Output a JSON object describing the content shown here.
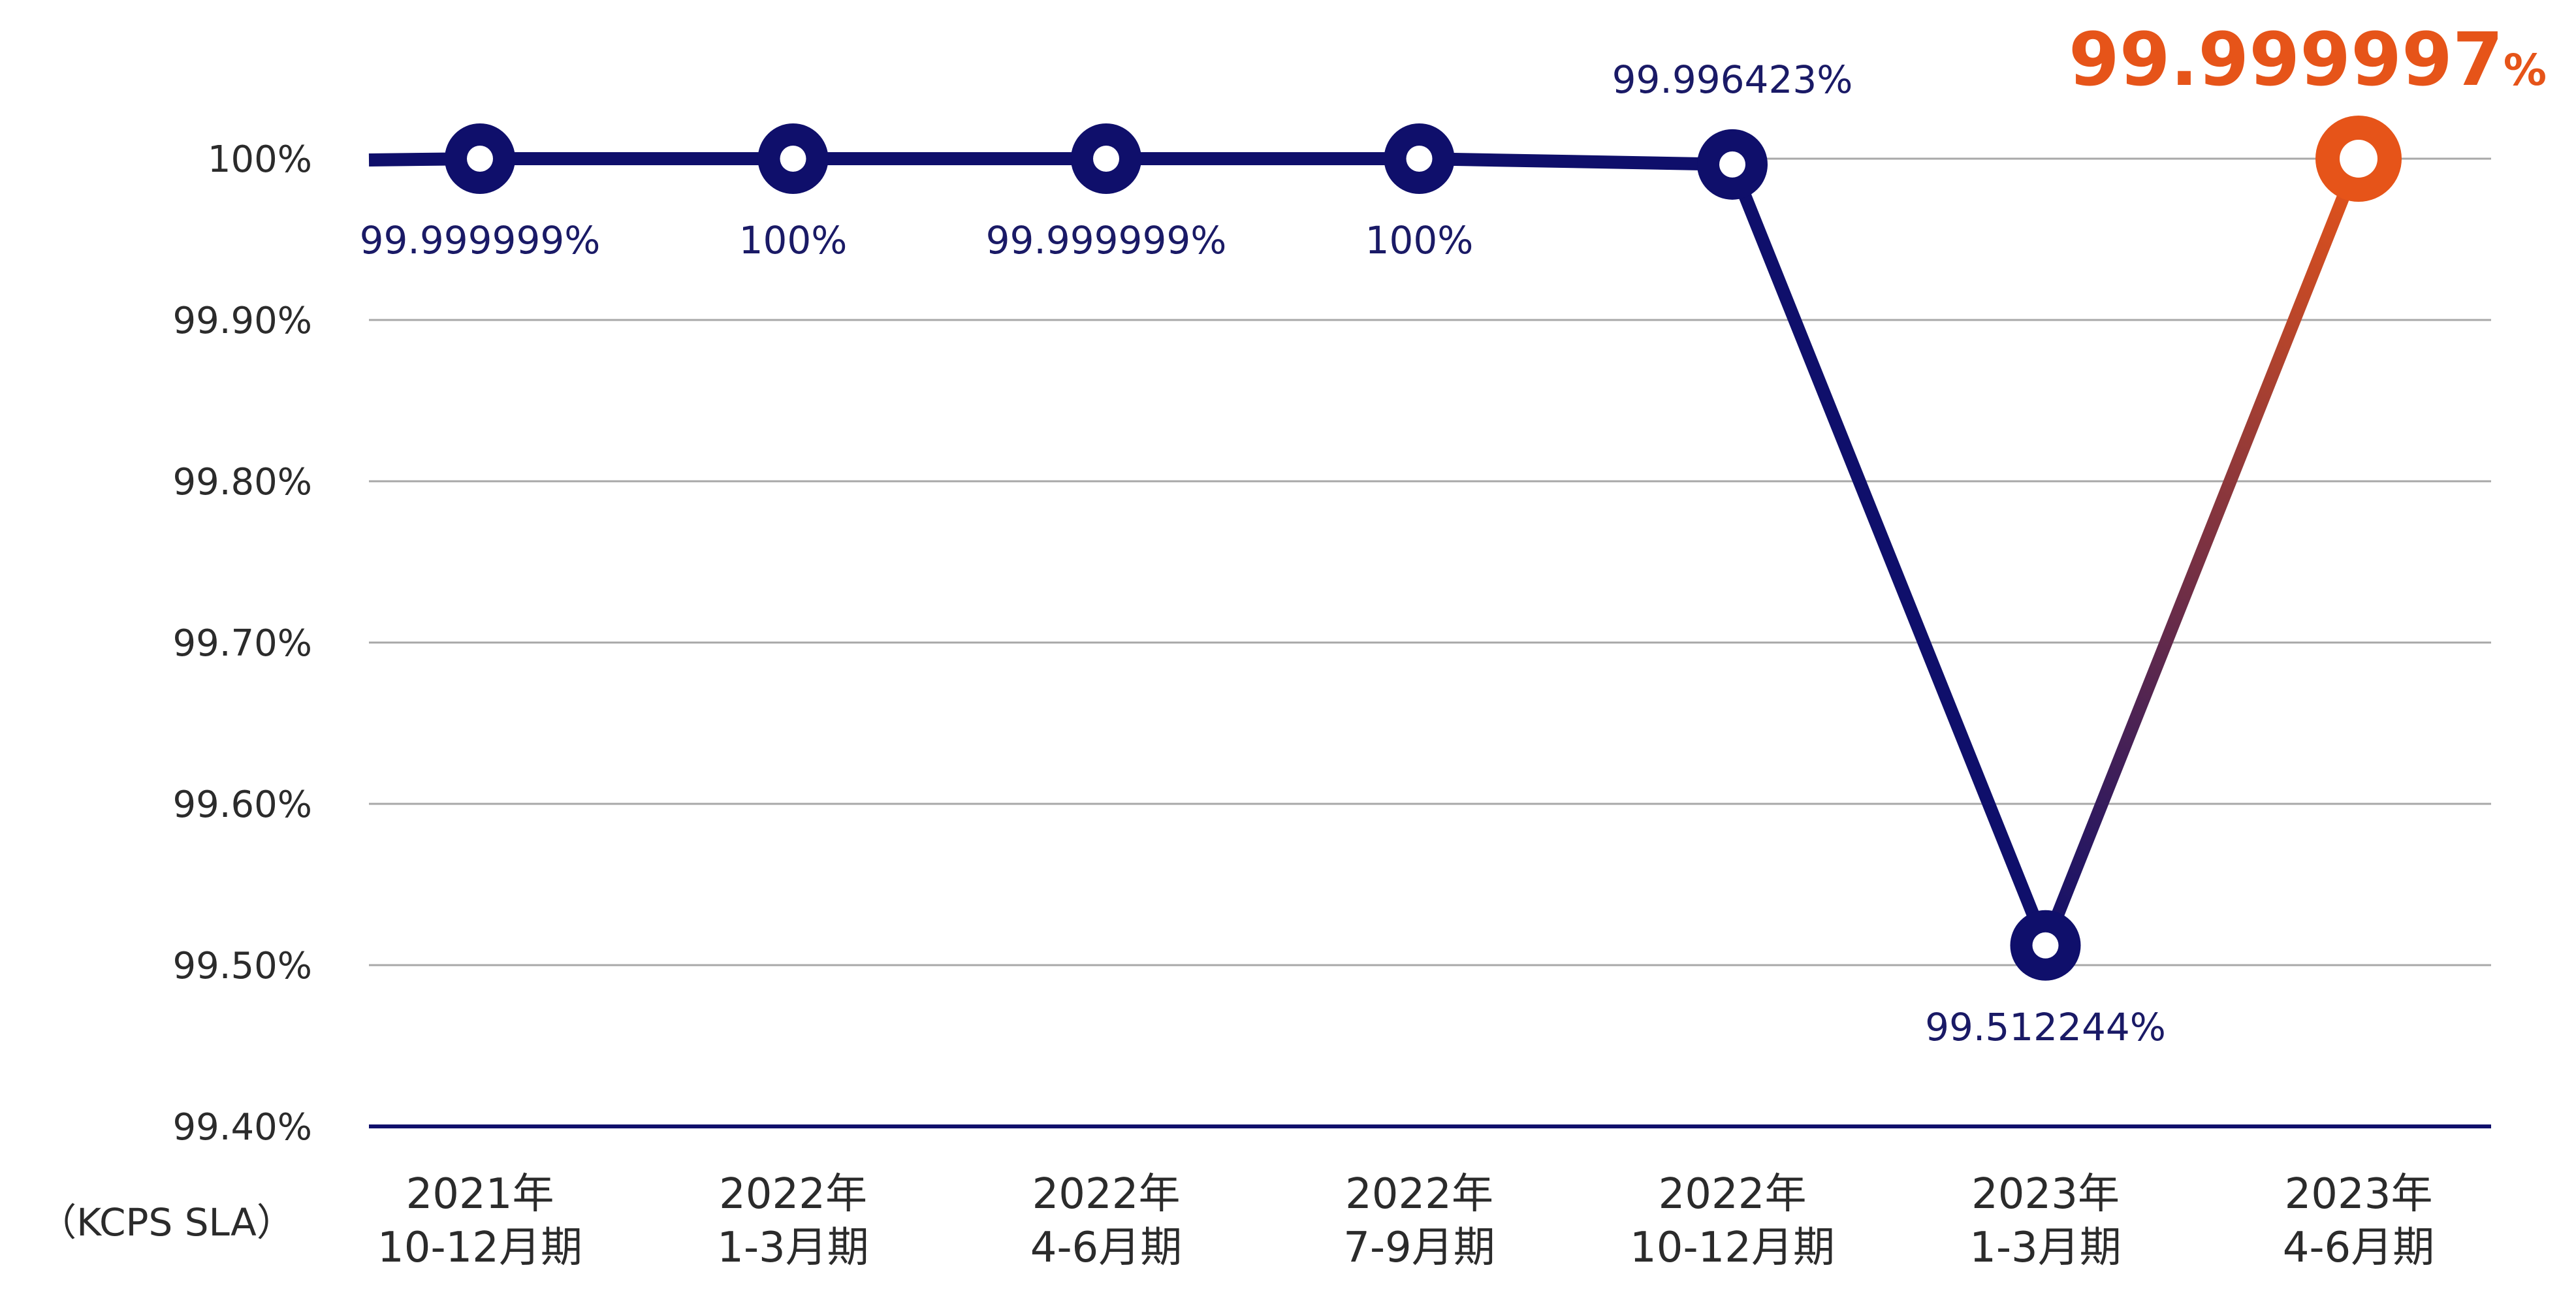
{
  "chart_data": {
    "type": "line",
    "corner_label": "（KCPS SLA）",
    "y_ticks": [
      "100%",
      "99.90%",
      "99.80%",
      "99.70%",
      "99.60%",
      "99.50%",
      "99.40%"
    ],
    "y_tick_values": [
      100,
      99.9,
      99.8,
      99.7,
      99.6,
      99.5,
      99.4
    ],
    "ylim": [
      99.4,
      100
    ],
    "grid": true,
    "categories": [
      {
        "year": "2021年",
        "period": "10-12月期"
      },
      {
        "year": "2022年",
        "period": "1-3月期"
      },
      {
        "year": "2022年",
        "period": "4-6月期"
      },
      {
        "year": "2022年",
        "period": "7-9月期"
      },
      {
        "year": "2022年",
        "period": "10-12月期"
      },
      {
        "year": "2023年",
        "period": "1-3月期"
      },
      {
        "year": "2023年",
        "period": "4-6月期"
      }
    ],
    "values": [
      99.999999,
      100,
      99.999999,
      100,
      99.996423,
      99.512244,
      99.999997
    ],
    "data_labels": [
      "99.999999%",
      "100%",
      "99.999999%",
      "100%",
      "99.996423%",
      "99.512244%",
      ""
    ],
    "highlight": {
      "number": "99.999997",
      "unit": "%"
    },
    "colors": {
      "line": "#0f0f6b",
      "highlight": "#e65419",
      "grid": "#a8a8a8",
      "axis_text": "#2b2b2b",
      "label_text": "#1a1a66"
    }
  }
}
